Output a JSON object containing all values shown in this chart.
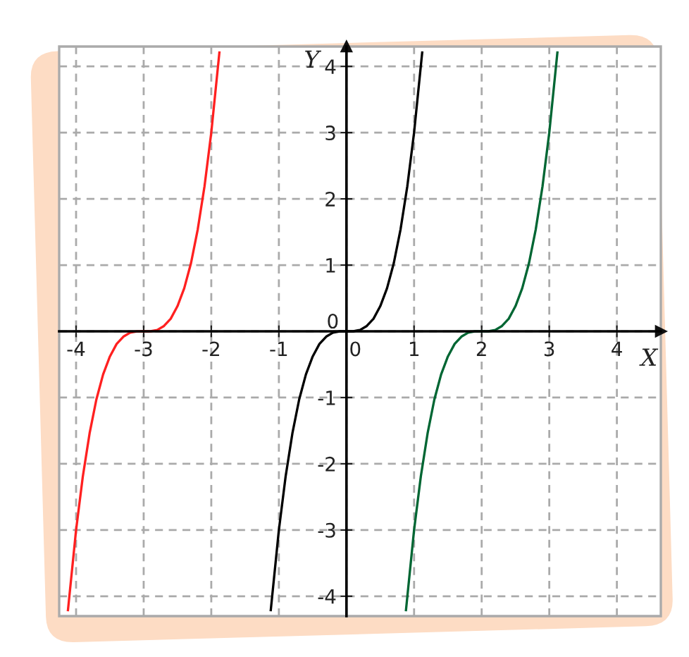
{
  "chart_data": {
    "type": "line",
    "xlabel": "X",
    "ylabel": "Y",
    "xlim": [
      -4.25,
      4.65
    ],
    "ylim": [
      -4.3,
      4.3
    ],
    "xticks": [
      -4,
      -3,
      -2,
      -1,
      0,
      1,
      2,
      3,
      4
    ],
    "yticks": [
      -4,
      -3,
      -2,
      -1,
      0,
      1,
      2,
      3,
      4
    ],
    "grid": true,
    "marker": "none",
    "line_style": "solid",
    "series": [
      {
        "color": "#ff2020",
        "x": [
          -4.12,
          -4,
          -3.9,
          -3.8,
          -3.7,
          -3.6,
          -3.5,
          -3.4,
          -3.3,
          -3.2,
          -3.1,
          -3,
          -2.9,
          -2.8,
          -2.7,
          -2.6,
          -2.5,
          -2.4,
          -2.3,
          -2.2,
          -2.1,
          -2,
          -1.88
        ],
        "values": [
          -4.21,
          -3,
          -2.19,
          -1.54,
          -1.03,
          -0.65,
          -0.38,
          -0.19,
          -0.08,
          -0.02,
          0,
          0,
          0,
          0.02,
          0.08,
          0.19,
          0.38,
          0.65,
          1.03,
          1.54,
          2.19,
          3,
          4.21
        ]
      },
      {
        "color": "#000000",
        "x": [
          -1.12,
          -1,
          -0.9,
          -0.8,
          -0.7,
          -0.6,
          -0.5,
          -0.4,
          -0.3,
          -0.2,
          -0.1,
          0,
          0.1,
          0.2,
          0.3,
          0.4,
          0.5,
          0.6,
          0.7,
          0.8,
          0.9,
          1,
          1.12
        ],
        "values": [
          -4.21,
          -3,
          -2.19,
          -1.54,
          -1.03,
          -0.65,
          -0.38,
          -0.19,
          -0.08,
          -0.02,
          0,
          0,
          0,
          0.02,
          0.08,
          0.19,
          0.38,
          0.65,
          1.03,
          1.54,
          2.19,
          3,
          4.21
        ]
      },
      {
        "color": "#006633",
        "x": [
          0.88,
          1,
          1.1,
          1.2,
          1.3,
          1.4,
          1.5,
          1.6,
          1.7,
          1.8,
          1.9,
          2,
          2.1,
          2.2,
          2.3,
          2.4,
          2.5,
          2.6,
          2.7,
          2.8,
          2.9,
          3,
          3.12
        ],
        "values": [
          -4.21,
          -3,
          -2.19,
          -1.54,
          -1.03,
          -0.65,
          -0.38,
          -0.19,
          -0.08,
          -0.02,
          0,
          0,
          0,
          0.02,
          0.08,
          0.19,
          0.38,
          0.65,
          1.03,
          1.54,
          2.19,
          3,
          4.21
        ]
      }
    ]
  }
}
